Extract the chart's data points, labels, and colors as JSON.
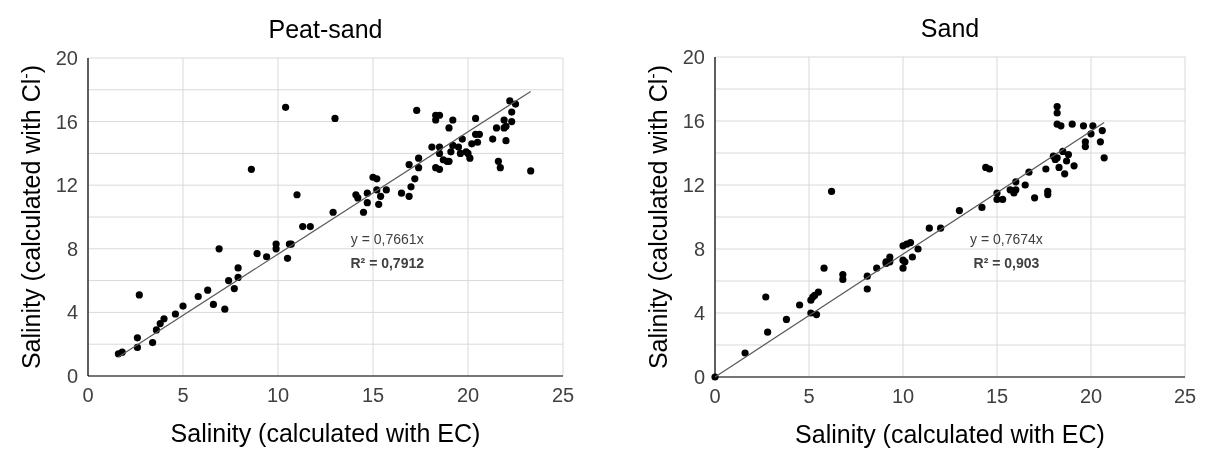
{
  "chart_data": [
    {
      "type": "scatter",
      "title": "Peat-sand",
      "xlabel": "Salinity (calculated with EC)",
      "ylabel": "Salinity (calculated with Cl$^{-}$)",
      "xlim": [
        0,
        25
      ],
      "ylim": [
        0,
        20
      ],
      "xticks": [
        0,
        5,
        10,
        15,
        20,
        25
      ],
      "yticks": [
        0,
        {
          "value": 2,
          "label": null
        },
        4,
        {
          "value": 6,
          "label": null
        },
        8,
        {
          "value": 10,
          "label": null
        },
        12,
        {
          "value": 14,
          "label": null
        },
        16,
        {
          "value": 18,
          "label": null
        },
        20
      ],
      "grid": true,
      "annotations": [
        "y = 0,7661x",
        "R² = 0,7912"
      ],
      "series": [
        {
          "marker": "circle",
          "color": "#000000",
          "x": [
            1.6,
            1.8,
            2.6,
            2.6,
            2.7,
            3.4,
            3.6,
            3.8,
            4.0,
            4.6,
            5.0,
            5.8,
            6.3,
            6.6,
            6.9,
            7.2,
            7.4,
            7.7,
            7.9,
            7.9,
            8.6,
            8.9,
            9.4,
            9.9,
            9.9,
            10.4,
            10.5,
            10.6,
            10.7,
            11.0,
            11.3,
            11.7,
            12.9,
            13.0,
            14.1,
            14.2,
            14.5,
            14.7,
            14.7,
            15.0,
            15.2,
            15.3,
            15.2,
            15.4,
            15.7,
            16.5,
            16.9,
            17.0,
            16.9,
            17.2,
            17.3,
            17.4,
            17.4,
            18.1,
            18.3,
            18.3,
            18.5,
            18.5,
            18.3,
            18.5,
            18.5,
            18.7,
            18.9,
            19.0,
            19.0,
            19.1,
            19.2,
            19.2,
            19.5,
            19.6,
            19.7,
            19.9,
            20.0,
            20.1,
            20.2,
            20.4,
            20.5,
            20.4,
            20.6,
            21.3,
            21.5,
            21.6,
            21.7,
            22.0,
            21.9,
            21.9,
            22.0,
            22.3,
            22.3,
            22.2,
            22.5,
            23.3
          ],
          "values": [
            1.4,
            1.5,
            2.4,
            1.8,
            5.1,
            2.1,
            2.9,
            3.3,
            3.6,
            3.9,
            4.4,
            5.0,
            5.4,
            4.5,
            8.0,
            4.2,
            6.0,
            5.5,
            6.2,
            6.8,
            13.0,
            7.7,
            7.5,
            8.3,
            8.0,
            16.9,
            7.4,
            8.3,
            8.3,
            11.4,
            9.4,
            9.4,
            10.3,
            16.2,
            11.4,
            11.2,
            10.3,
            11.5,
            10.9,
            12.5,
            12.4,
            10.8,
            11.7,
            11.3,
            11.7,
            11.5,
            11.3,
            11.9,
            13.3,
            12.4,
            16.7,
            13.1,
            13.7,
            14.4,
            16.4,
            16.1,
            16.4,
            14.4,
            13.1,
            13.0,
            14.0,
            13.6,
            13.5,
            13.5,
            15.6,
            14.1,
            16.1,
            14.5,
            14.4,
            14.0,
            14.9,
            14.1,
            14.0,
            13.7,
            14.6,
            16.2,
            14.7,
            15.2,
            15.2,
            14.9,
            15.6,
            13.5,
            13.1,
            14.8,
            15.6,
            16.1,
            15.7,
            16.0,
            16.6,
            17.3,
            17.1,
            12.9
          ]
        },
        {
          "type": "line",
          "color": "#595959",
          "x": [
            1.6,
            23.3
          ],
          "values": [
            1.2,
            17.9
          ]
        }
      ]
    },
    {
      "type": "scatter",
      "title": "Sand",
      "xlabel": "Salinity (calculated with EC)",
      "ylabel": "Salinity (calculated with Cl$^{-}$)",
      "xlim": [
        0,
        25
      ],
      "ylim": [
        0,
        20
      ],
      "xticks": [
        0,
        5,
        10,
        15,
        20,
        25
      ],
      "yticks": [
        0,
        {
          "value": 2,
          "label": null
        },
        4,
        {
          "value": 6,
          "label": null
        },
        8,
        {
          "value": 10,
          "label": null
        },
        12,
        {
          "value": 14,
          "label": null
        },
        16,
        {
          "value": 18,
          "label": null
        },
        20
      ],
      "grid": true,
      "annotations": [
        "y = 0,7674x",
        "R² = 0,903"
      ],
      "series": [
        {
          "marker": "circle",
          "color": "#000000",
          "x": [
            0,
            1.6,
            2.7,
            2.8,
            3.8,
            4.5,
            5.1,
            5.2,
            5.3,
            5.5,
            5.1,
            5.4,
            5.8,
            6.2,
            6.8,
            6.8,
            8.1,
            8.1,
            8.6,
            9.1,
            9.1,
            9.3,
            9.3,
            10.0,
            10.0,
            10.1,
            10.0,
            10.2,
            10.4,
            10.5,
            10.8,
            11.4,
            12.0,
            13.0,
            14.2,
            14.4,
            14.6,
            15.0,
            15.0,
            15.3,
            15.7,
            15.9,
            16.0,
            16.0,
            16.5,
            16.7,
            17.0,
            17.6,
            17.7,
            17.7,
            18.0,
            18.1,
            18.2,
            18.2,
            18.2,
            18.2,
            18.4,
            18.3,
            18.5,
            18.6,
            18.7,
            18.8,
            19.1,
            19.0,
            19.6,
            19.7,
            19.7,
            20.0,
            20.1,
            20.5,
            20.6,
            20.7
          ],
          "values": [
            0,
            1.5,
            5.0,
            2.8,
            3.6,
            4.5,
            4.8,
            5.0,
            5.1,
            5.3,
            4.0,
            3.9,
            6.8,
            11.6,
            6.4,
            6.1,
            6.3,
            5.5,
            6.8,
            7.1,
            7.2,
            7.5,
            7.2,
            6.8,
            7.3,
            7.2,
            8.2,
            8.3,
            8.4,
            7.5,
            8.0,
            9.3,
            9.3,
            10.4,
            10.6,
            13.1,
            13.0,
            11.5,
            11.1,
            11.1,
            11.7,
            11.5,
            11.7,
            12.2,
            12.0,
            12.8,
            11.2,
            13.0,
            11.6,
            11.4,
            13.8,
            13.6,
            13.7,
            16.9,
            16.5,
            15.8,
            15.7,
            13.1,
            14.1,
            12.7,
            13.5,
            13.9,
            13.2,
            15.8,
            15.7,
            14.4,
            14.7,
            15.2,
            15.7,
            14.7,
            15.4,
            13.7
          ]
        },
        {
          "type": "line",
          "color": "#595959",
          "x": [
            0,
            20.7
          ],
          "values": [
            0,
            15.9
          ]
        }
      ]
    }
  ]
}
